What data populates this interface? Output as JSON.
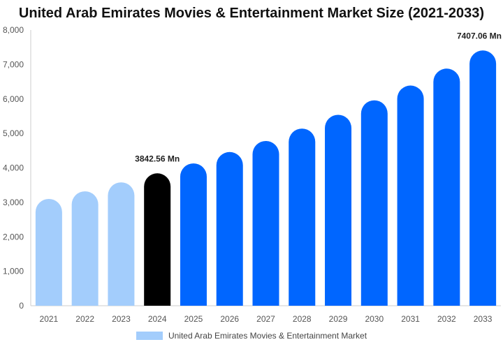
{
  "chart_data": {
    "type": "bar",
    "title": "United Arab Emirates Movies & Entertainment Market Size (2021-2033)",
    "categories": [
      "2021",
      "2022",
      "2023",
      "2024",
      "2025",
      "2026",
      "2027",
      "2028",
      "2029",
      "2030",
      "2031",
      "2032",
      "2033"
    ],
    "series": [
      {
        "name": "United Arab Emirates Movies & Entertainment Market",
        "values": [
          3100,
          3320,
          3580,
          3842.56,
          4130,
          4460,
          4780,
          5140,
          5540,
          5960,
          6390,
          6880,
          7407.06
        ]
      }
    ],
    "data_labels": [
      {
        "category": "2024",
        "text": "3842.56 Mn"
      },
      {
        "category": "2033",
        "text": "7407.06 Mn"
      }
    ],
    "ylim": [
      0,
      8000
    ],
    "yticks": [
      "0",
      "1,000",
      "2,000",
      "3,000",
      "4,000",
      "5,000",
      "6,000",
      "7,000",
      "8,000"
    ],
    "grid": false,
    "legend_position": "bottom",
    "colors": {
      "historical": "#a3cdfc",
      "base_year": "#000000",
      "forecast": "#0066ff",
      "axis": "#cccccc",
      "tick_text": "#555555"
    }
  }
}
